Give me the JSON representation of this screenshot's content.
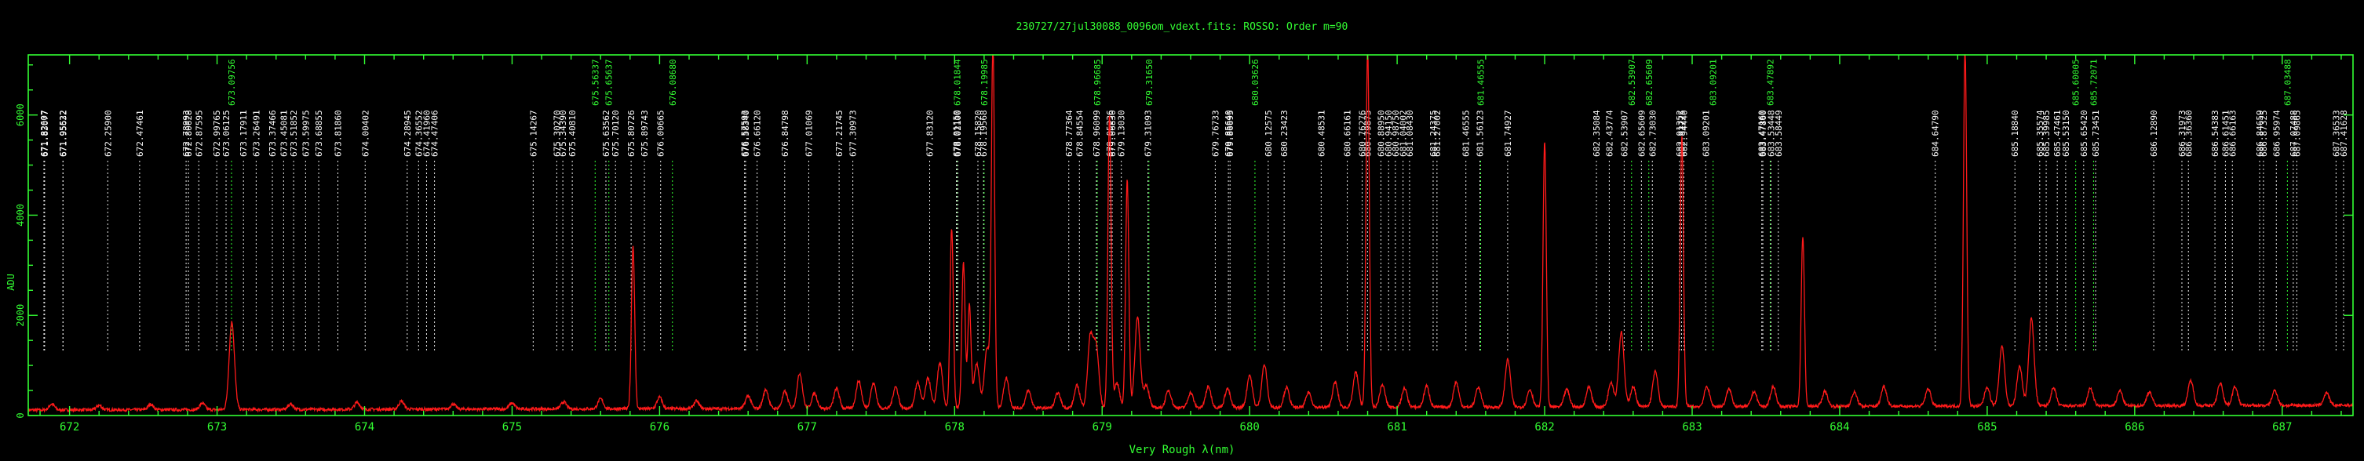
{
  "chart_data": {
    "type": "line",
    "title": "230727/27jul30088_0096om_vdext.fits: ROSSO: Order m=90",
    "xlabel": "Very Rough λ(nm)",
    "ylabel": "ADU",
    "xlim": [
      671.72,
      687.48
    ],
    "ylim": [
      0,
      7200
    ],
    "x_ticks": [
      672,
      673,
      674,
      675,
      676,
      677,
      678,
      679,
      680,
      681,
      682,
      683,
      684,
      685,
      686,
      687
    ],
    "y_ticks": [
      0,
      2000,
      4000,
      6000
    ],
    "colors": {
      "frame": "#33ff33",
      "spectrum": "#ff1a1a",
      "identified": "#ffffff",
      "blended": "#33ff33",
      "background": "#000000"
    },
    "series": [
      {
        "color": "#ff1a1a",
        "baseline": 80,
        "peaks": [
          [
            671.88,
            120
          ],
          [
            672.2,
            90
          ],
          [
            672.55,
            110
          ],
          [
            672.9,
            130
          ],
          [
            673.1,
            1750
          ],
          [
            673.5,
            110
          ],
          [
            673.95,
            140
          ],
          [
            674.25,
            160
          ],
          [
            674.6,
            100
          ],
          [
            675.0,
            120
          ],
          [
            675.35,
            140
          ],
          [
            675.6,
            200
          ],
          [
            675.82,
            3250
          ],
          [
            676.0,
            230
          ],
          [
            676.25,
            150
          ],
          [
            676.6,
            260
          ],
          [
            676.72,
            380
          ],
          [
            676.85,
            340
          ],
          [
            676.95,
            700
          ],
          [
            677.05,
            300
          ],
          [
            677.2,
            400
          ],
          [
            677.35,
            550
          ],
          [
            677.45,
            500
          ],
          [
            677.6,
            430
          ],
          [
            677.75,
            520
          ],
          [
            677.82,
            600
          ],
          [
            677.9,
            900
          ],
          [
            677.98,
            3600
          ],
          [
            678.06,
            2900
          ],
          [
            678.1,
            2050
          ],
          [
            678.15,
            900
          ],
          [
            678.22,
            1200
          ],
          [
            678.26,
            7200
          ],
          [
            678.35,
            600
          ],
          [
            678.5,
            350
          ],
          [
            678.7,
            300
          ],
          [
            678.83,
            450
          ],
          [
            678.92,
            1400
          ],
          [
            678.96,
            1200
          ],
          [
            679.05,
            5850
          ],
          [
            679.1,
            500
          ],
          [
            679.17,
            4550
          ],
          [
            679.24,
            1800
          ],
          [
            679.3,
            450
          ],
          [
            679.45,
            350
          ],
          [
            679.6,
            300
          ],
          [
            679.72,
            420
          ],
          [
            679.85,
            380
          ],
          [
            680.0,
            650
          ],
          [
            680.1,
            850
          ],
          [
            680.25,
            400
          ],
          [
            680.4,
            300
          ],
          [
            680.58,
            500
          ],
          [
            680.72,
            700
          ],
          [
            680.8,
            7200
          ],
          [
            680.9,
            450
          ],
          [
            681.05,
            380
          ],
          [
            681.2,
            420
          ],
          [
            681.4,
            500
          ],
          [
            681.55,
            400
          ],
          [
            681.75,
            950
          ],
          [
            681.9,
            350
          ],
          [
            682.0,
            5300
          ],
          [
            682.15,
            350
          ],
          [
            682.3,
            400
          ],
          [
            682.45,
            500
          ],
          [
            682.52,
            1500
          ],
          [
            682.6,
            400
          ],
          [
            682.75,
            700
          ],
          [
            682.93,
            5400
          ],
          [
            683.1,
            400
          ],
          [
            683.25,
            350
          ],
          [
            683.42,
            300
          ],
          [
            683.55,
            400
          ],
          [
            683.75,
            3400
          ],
          [
            683.9,
            300
          ],
          [
            684.1,
            280
          ],
          [
            684.3,
            400
          ],
          [
            684.6,
            350
          ],
          [
            684.85,
            7200
          ],
          [
            685.0,
            380
          ],
          [
            685.1,
            1200
          ],
          [
            685.22,
            800
          ],
          [
            685.3,
            1750
          ],
          [
            685.45,
            350
          ],
          [
            685.7,
            350
          ],
          [
            685.9,
            300
          ],
          [
            686.1,
            280
          ],
          [
            686.38,
            500
          ],
          [
            686.58,
            450
          ],
          [
            686.68,
            380
          ],
          [
            686.95,
            300
          ],
          [
            687.3,
            250
          ]
        ]
      }
    ],
    "identified_lines": [
      {
        "wl": "671.82607",
        "x": 671.826,
        "color": "w"
      },
      {
        "wl": "671.83077",
        "x": 671.831,
        "color": "w"
      },
      {
        "wl": "671.95522",
        "x": 671.955,
        "color": "w"
      },
      {
        "wl": "671.95632",
        "x": 671.956,
        "color": "w"
      },
      {
        "wl": "672.25900",
        "x": 672.259,
        "color": "w"
      },
      {
        "wl": "672.47461",
        "x": 672.475,
        "color": "w"
      },
      {
        "wl": "672.78993",
        "x": 672.79,
        "color": "w"
      },
      {
        "wl": "672.80628",
        "x": 672.806,
        "color": "w"
      },
      {
        "wl": "672.87595",
        "x": 672.876,
        "color": "w"
      },
      {
        "wl": "672.99765",
        "x": 672.998,
        "color": "w"
      },
      {
        "wl": "673.09756",
        "x": 673.098,
        "color": "g"
      },
      {
        "wl": "673.06125",
        "x": 673.061,
        "color": "w"
      },
      {
        "wl": "673.17911",
        "x": 673.179,
        "color": "w"
      },
      {
        "wl": "673.26491",
        "x": 673.265,
        "color": "w"
      },
      {
        "wl": "673.37466",
        "x": 673.375,
        "color": "w"
      },
      {
        "wl": "673.45081",
        "x": 673.451,
        "color": "w"
      },
      {
        "wl": "673.51852",
        "x": 673.519,
        "color": "w"
      },
      {
        "wl": "673.59975",
        "x": 673.6,
        "color": "w"
      },
      {
        "wl": "673.68855",
        "x": 673.689,
        "color": "w"
      },
      {
        "wl": "673.81860",
        "x": 673.819,
        "color": "w"
      },
      {
        "wl": "674.00402",
        "x": 674.004,
        "color": "w"
      },
      {
        "wl": "674.28945",
        "x": 674.289,
        "color": "w"
      },
      {
        "wl": "674.36552",
        "x": 674.366,
        "color": "w"
      },
      {
        "wl": "674.41960",
        "x": 674.42,
        "color": "w"
      },
      {
        "wl": "674.47406",
        "x": 674.474,
        "color": "w"
      },
      {
        "wl": "675.14267",
        "x": 675.143,
        "color": "w"
      },
      {
        "wl": "675.30270",
        "x": 675.303,
        "color": "w"
      },
      {
        "wl": "675.34390",
        "x": 675.344,
        "color": "w"
      },
      {
        "wl": "675.40810",
        "x": 675.408,
        "color": "w"
      },
      {
        "wl": "675.56337",
        "x": 675.563,
        "color": "g"
      },
      {
        "wl": "675.63562",
        "x": 675.636,
        "color": "w"
      },
      {
        "wl": "675.65637",
        "x": 675.656,
        "color": "g"
      },
      {
        "wl": "675.70120",
        "x": 675.701,
        "color": "w"
      },
      {
        "wl": "675.80726",
        "x": 675.807,
        "color": "w"
      },
      {
        "wl": "675.89743",
        "x": 675.897,
        "color": "w"
      },
      {
        "wl": "676.00665",
        "x": 676.007,
        "color": "w"
      },
      {
        "wl": "676.08680",
        "x": 676.087,
        "color": "g"
      },
      {
        "wl": "676.57593",
        "x": 676.576,
        "color": "w"
      },
      {
        "wl": "676.58340",
        "x": 676.583,
        "color": "w"
      },
      {
        "wl": "676.66120",
        "x": 676.661,
        "color": "w"
      },
      {
        "wl": "676.84798",
        "x": 676.848,
        "color": "w"
      },
      {
        "wl": "677.01069",
        "x": 677.011,
        "color": "w"
      },
      {
        "wl": "677.21745",
        "x": 677.217,
        "color": "w"
      },
      {
        "wl": "677.30973",
        "x": 677.31,
        "color": "w"
      },
      {
        "wl": "677.83120",
        "x": 677.831,
        "color": "w"
      },
      {
        "wl": "678.01150",
        "x": 678.012,
        "color": "w"
      },
      {
        "wl": "678.01844",
        "x": 678.018,
        "color": "g"
      },
      {
        "wl": "678.02100",
        "x": 678.021,
        "color": "w"
      },
      {
        "wl": "678.15820",
        "x": 678.158,
        "color": "w"
      },
      {
        "wl": "678.19568",
        "x": 678.196,
        "color": "w"
      },
      {
        "wl": "678.19985",
        "x": 678.2,
        "color": "g"
      },
      {
        "wl": "678.77364",
        "x": 678.774,
        "color": "w"
      },
      {
        "wl": "678.84554",
        "x": 678.846,
        "color": "w"
      },
      {
        "wl": "678.96099",
        "x": 678.961,
        "color": "w"
      },
      {
        "wl": "678.96685",
        "x": 678.967,
        "color": "g"
      },
      {
        "wl": "679.05236",
        "x": 679.052,
        "color": "w"
      },
      {
        "wl": "679.06830",
        "x": 679.068,
        "color": "w"
      },
      {
        "wl": "679.13030",
        "x": 679.13,
        "color": "w"
      },
      {
        "wl": "679.31093",
        "x": 679.311,
        "color": "w"
      },
      {
        "wl": "679.31650",
        "x": 679.317,
        "color": "g"
      },
      {
        "wl": "679.76733",
        "x": 679.767,
        "color": "w"
      },
      {
        "wl": "679.85640",
        "x": 679.856,
        "color": "w"
      },
      {
        "wl": "679.86695",
        "x": 679.867,
        "color": "w"
      },
      {
        "wl": "680.03626",
        "x": 680.036,
        "color": "g"
      },
      {
        "wl": "680.12575",
        "x": 680.126,
        "color": "w"
      },
      {
        "wl": "680.23423",
        "x": 680.234,
        "color": "w"
      },
      {
        "wl": "680.48531",
        "x": 680.485,
        "color": "w"
      },
      {
        "wl": "680.66161",
        "x": 680.662,
        "color": "w"
      },
      {
        "wl": "680.76276",
        "x": 680.763,
        "color": "w"
      },
      {
        "wl": "680.79875",
        "x": 680.799,
        "color": "w"
      },
      {
        "wl": "680.88950",
        "x": 680.89,
        "color": "w"
      },
      {
        "wl": "680.94150",
        "x": 680.942,
        "color": "w"
      },
      {
        "wl": "680.98750",
        "x": 680.988,
        "color": "w"
      },
      {
        "wl": "681.04002",
        "x": 681.04,
        "color": "w"
      },
      {
        "wl": "681.08430",
        "x": 681.084,
        "color": "w"
      },
      {
        "wl": "681.24375",
        "x": 681.244,
        "color": "w"
      },
      {
        "wl": "681.27002",
        "x": 681.27,
        "color": "w"
      },
      {
        "wl": "681.46555",
        "x": 681.466,
        "color": "w"
      },
      {
        "wl": "681.46555",
        "x": 681.566,
        "color": "g"
      },
      {
        "wl": "681.56123",
        "x": 681.561,
        "color": "w"
      },
      {
        "wl": "681.74927",
        "x": 681.749,
        "color": "w"
      },
      {
        "wl": "682.35084",
        "x": 682.351,
        "color": "w"
      },
      {
        "wl": "682.43774",
        "x": 682.438,
        "color": "w"
      },
      {
        "wl": "682.53907",
        "x": 682.539,
        "color": "w"
      },
      {
        "wl": "682.53907",
        "x": 682.589,
        "color": "g"
      },
      {
        "wl": "682.65609",
        "x": 682.656,
        "color": "w"
      },
      {
        "wl": "682.65609",
        "x": 682.706,
        "color": "g"
      },
      {
        "wl": "682.73030",
        "x": 682.73,
        "color": "w"
      },
      {
        "wl": "682.91352",
        "x": 682.914,
        "color": "w"
      },
      {
        "wl": "682.92775",
        "x": 682.928,
        "color": "w"
      },
      {
        "wl": "682.94440",
        "x": 682.944,
        "color": "w"
      },
      {
        "wl": "683.09201",
        "x": 683.092,
        "color": "w"
      },
      {
        "wl": "683.09201",
        "x": 683.142,
        "color": "g"
      },
      {
        "wl": "683.47160",
        "x": 683.472,
        "color": "w"
      },
      {
        "wl": "683.47860",
        "x": 683.479,
        "color": "w"
      },
      {
        "wl": "683.47892",
        "x": 683.529,
        "color": "g"
      },
      {
        "wl": "683.53448",
        "x": 683.534,
        "color": "w"
      },
      {
        "wl": "683.58449",
        "x": 683.584,
        "color": "w"
      },
      {
        "wl": "684.64790",
        "x": 684.648,
        "color": "w"
      },
      {
        "wl": "685.18840",
        "x": 685.188,
        "color": "w"
      },
      {
        "wl": "685.35574",
        "x": 685.356,
        "color": "w"
      },
      {
        "wl": "685.39985",
        "x": 685.4,
        "color": "w"
      },
      {
        "wl": "685.47461",
        "x": 685.475,
        "color": "w"
      },
      {
        "wl": "685.53150",
        "x": 685.532,
        "color": "w"
      },
      {
        "wl": "685.60005",
        "x": 685.6,
        "color": "g"
      },
      {
        "wl": "685.65420",
        "x": 685.654,
        "color": "w"
      },
      {
        "wl": "685.72071",
        "x": 685.721,
        "color": "g"
      },
      {
        "wl": "685.73451",
        "x": 685.735,
        "color": "w"
      },
      {
        "wl": "686.12890",
        "x": 686.129,
        "color": "w"
      },
      {
        "wl": "686.31973",
        "x": 686.32,
        "color": "w"
      },
      {
        "wl": "686.36360",
        "x": 686.364,
        "color": "w"
      },
      {
        "wl": "686.54383",
        "x": 686.544,
        "color": "w"
      },
      {
        "wl": "686.61451",
        "x": 686.615,
        "color": "w"
      },
      {
        "wl": "686.66163",
        "x": 686.662,
        "color": "w"
      },
      {
        "wl": "686.84659",
        "x": 686.847,
        "color": "w"
      },
      {
        "wl": "686.87325",
        "x": 686.873,
        "color": "w"
      },
      {
        "wl": "686.95974",
        "x": 686.96,
        "color": "w"
      },
      {
        "wl": "687.03488",
        "x": 687.035,
        "color": "g"
      },
      {
        "wl": "687.07488",
        "x": 687.075,
        "color": "w"
      },
      {
        "wl": "687.09865",
        "x": 687.099,
        "color": "w"
      },
      {
        "wl": "687.36533",
        "x": 687.365,
        "color": "w"
      },
      {
        "wl": "687.41628",
        "x": 687.416,
        "color": "w"
      }
    ]
  }
}
